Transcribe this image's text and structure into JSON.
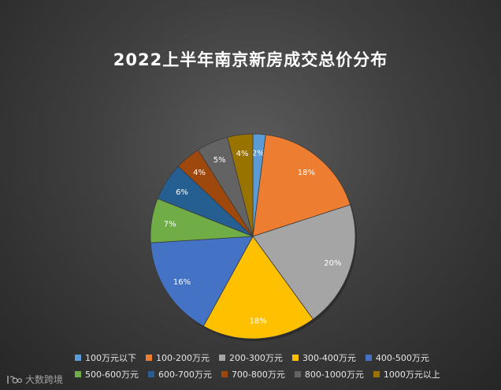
{
  "chart_data": {
    "type": "pie",
    "title": "2022上半年南京新房成交总价分布",
    "categories": [
      "100万元以下",
      "100-200万元",
      "200-300万元",
      "300-400万元",
      "400-500万元",
      "500-600万元",
      "600-700万元",
      "700-800万元",
      "800-1000万元",
      "1000万元以上"
    ],
    "values": [
      2,
      18,
      20,
      18,
      16,
      7,
      6,
      4,
      5,
      4
    ],
    "data_labels": [
      "2%",
      "18%",
      "20%",
      "18%",
      "16%",
      "7%",
      "6%",
      "4%",
      "5%",
      "4%"
    ],
    "colors": [
      "#5b9bd5",
      "#ed7d31",
      "#a5a5a5",
      "#ffc000",
      "#4472c4",
      "#70ad47",
      "#255e91",
      "#9e480e",
      "#636363",
      "#997300"
    ],
    "legend_position": "bottom"
  },
  "watermark": {
    "text": "大数跨境"
  }
}
